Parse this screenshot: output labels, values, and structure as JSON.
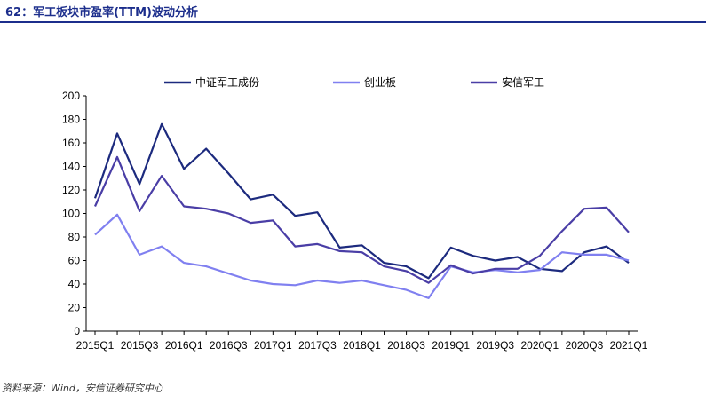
{
  "figure": {
    "title": "62：军工板块市盈率(TTM)波动分析",
    "source": "资料来源：Wind，安信证券研究中心"
  },
  "colors": {
    "title": "#1c2e8c",
    "axis": "#000000"
  },
  "chart_data": {
    "type": "line",
    "x": [
      "2015Q1",
      "2015Q2",
      "2015Q3",
      "2015Q4",
      "2016Q1",
      "2016Q2",
      "2016Q3",
      "2016Q4",
      "2017Q1",
      "2017Q2",
      "2017Q3",
      "2017Q4",
      "2018Q1",
      "2018Q2",
      "2018Q3",
      "2018Q4",
      "2019Q1",
      "2019Q2",
      "2019Q3",
      "2019Q4",
      "2020Q1",
      "2020Q2",
      "2020Q3",
      "2020Q4",
      "2021Q1"
    ],
    "tick_labels": [
      "2015Q1",
      "2015Q3",
      "2016Q1",
      "2016Q3",
      "2017Q1",
      "2017Q3",
      "2018Q1",
      "2018Q3",
      "2019Q1",
      "2019Q3",
      "2020Q1",
      "2020Q3",
      "2021Q1"
    ],
    "ylim": [
      0,
      200
    ],
    "yticks": [
      0,
      20,
      40,
      60,
      80,
      100,
      120,
      140,
      160,
      180,
      200
    ],
    "grid": false,
    "legend_position": "top",
    "series": [
      {
        "name": "中证军工成份",
        "color": "#1c2a7e",
        "values": [
          113,
          168,
          125,
          176,
          138,
          155,
          134,
          112,
          116,
          98,
          101,
          71,
          73,
          58,
          55,
          45,
          71,
          64,
          60,
          63,
          53,
          51,
          67,
          72,
          58
        ]
      },
      {
        "name": "创业板",
        "color": "#8080f0",
        "values": [
          82,
          99,
          65,
          72,
          58,
          55,
          49,
          43,
          40,
          39,
          43,
          41,
          43,
          39,
          35,
          28,
          55,
          50,
          52,
          50,
          52,
          67,
          65,
          65,
          60
        ]
      },
      {
        "name": "安信军工",
        "color": "#4a3ea6",
        "values": [
          106,
          148,
          102,
          132,
          106,
          104,
          100,
          92,
          94,
          72,
          74,
          68,
          67,
          55,
          51,
          41,
          56,
          49,
          53,
          53,
          64,
          85,
          104,
          105,
          84
        ]
      }
    ]
  }
}
